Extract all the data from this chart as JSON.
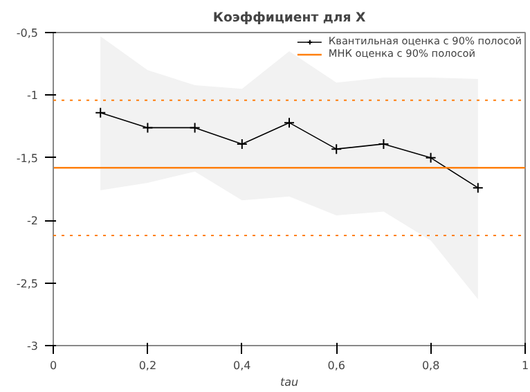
{
  "chart_data": {
    "type": "line",
    "title": "Коэффициент для X",
    "xlabel": "tau",
    "xlim": [
      0,
      1
    ],
    "xticks": [
      {
        "value": 0,
        "label": "0"
      },
      {
        "value": 0.2,
        "label": "0,2"
      },
      {
        "value": 0.4,
        "label": "0,4"
      },
      {
        "value": 0.6,
        "label": "0,6"
      },
      {
        "value": 0.8,
        "label": "0,8"
      },
      {
        "value": 1,
        "label": "1"
      }
    ],
    "ylim": [
      -3,
      -0.5
    ],
    "yticks": [
      {
        "value": -3,
        "label": "-3"
      },
      {
        "value": -2.5,
        "label": "-2,5"
      },
      {
        "value": -2,
        "label": "-2"
      },
      {
        "value": -1.5,
        "label": "-1,5"
      },
      {
        "value": -1,
        "label": "-1"
      },
      {
        "value": -0.5,
        "label": "-0,5"
      }
    ],
    "grid": false,
    "legend": "top right",
    "series": [
      {
        "name": "Квантильная оценка с 90% полосой",
        "color": "#000000",
        "marker": "cross",
        "x": [
          0.1,
          0.2,
          0.3,
          0.4,
          0.5,
          0.6,
          0.7,
          0.8,
          0.9
        ],
        "values": [
          -1.14,
          -1.26,
          -1.26,
          -1.39,
          -1.22,
          -1.43,
          -1.39,
          -1.5,
          -1.74
        ],
        "lower": [
          -1.76,
          -1.7,
          -1.61,
          -1.84,
          -1.81,
          -1.96,
          -1.93,
          -2.16,
          -2.63
        ],
        "upper": [
          -0.53,
          -0.8,
          -0.92,
          -0.95,
          -0.65,
          -0.9,
          -0.86,
          -0.86,
          -0.87
        ]
      },
      {
        "name": "МНК оценка с 90% полосой",
        "color": "#ff7f0e",
        "marker": "none",
        "x": [
          0,
          1
        ],
        "values": [
          -1.58,
          -1.58
        ]
      }
    ],
    "ref_lines": [
      {
        "axis": "y",
        "value": -1.04,
        "color": "#ff7f0e",
        "line_style": "dotted"
      },
      {
        "axis": "y",
        "value": -2.12,
        "color": "#ff7f0e",
        "line_style": "dotted"
      }
    ]
  }
}
